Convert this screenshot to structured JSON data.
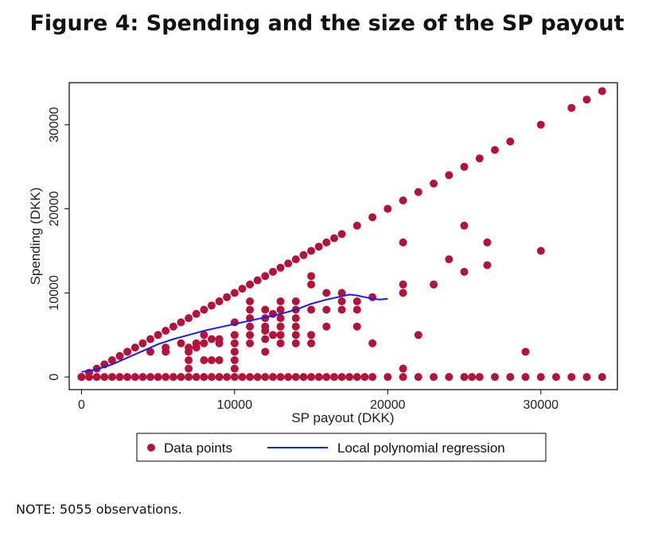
{
  "title": "Figure 4: Spending and the size of the SP payout",
  "note": "NOTE: 5055 observations.",
  "colors": {
    "points": "#b5123a",
    "line": "#1a1aff"
  },
  "chart_data": {
    "type": "scatter",
    "title": "Figure 4: Spending and the size of the SP payout",
    "xlabel": "SP payout (DKK)",
    "ylabel": "Spending (DKK)",
    "xlim": [
      -800,
      35000
    ],
    "ylim": [
      -1500,
      35000
    ],
    "xticks": [
      0,
      10000,
      20000,
      30000
    ],
    "xtick_labels": [
      "0",
      "10000",
      "20000",
      "30000"
    ],
    "yticks": [
      0,
      10000,
      20000,
      30000
    ],
    "ytick_labels": [
      "0",
      "10000",
      "20000",
      "30000"
    ],
    "grid": false,
    "legend_position": "bottom",
    "series": [
      {
        "name": "Data points",
        "kind": "scatter",
        "points": [
          [
            0,
            0
          ],
          [
            500,
            500
          ],
          [
            1000,
            1000
          ],
          [
            1500,
            1500
          ],
          [
            2000,
            2000
          ],
          [
            2500,
            2500
          ],
          [
            3000,
            3000
          ],
          [
            3500,
            3500
          ],
          [
            4000,
            4000
          ],
          [
            4500,
            4500
          ],
          [
            5000,
            5000
          ],
          [
            5500,
            5500
          ],
          [
            6000,
            6000
          ],
          [
            6500,
            6500
          ],
          [
            7000,
            7000
          ],
          [
            7500,
            7500
          ],
          [
            8000,
            8000
          ],
          [
            8500,
            8500
          ],
          [
            9000,
            9000
          ],
          [
            9500,
            9500
          ],
          [
            10000,
            10000
          ],
          [
            10500,
            10500
          ],
          [
            11000,
            11000
          ],
          [
            11500,
            11500
          ],
          [
            12000,
            12000
          ],
          [
            12500,
            12500
          ],
          [
            13000,
            13000
          ],
          [
            13500,
            13500
          ],
          [
            14000,
            14000
          ],
          [
            14500,
            14500
          ],
          [
            15000,
            15000
          ],
          [
            15500,
            15500
          ],
          [
            16000,
            16000
          ],
          [
            16500,
            16500
          ],
          [
            17000,
            17000
          ],
          [
            18000,
            18000
          ],
          [
            19000,
            19000
          ],
          [
            20000,
            20000
          ],
          [
            21000,
            21000
          ],
          [
            22000,
            22000
          ],
          [
            23000,
            23000
          ],
          [
            24000,
            24000
          ],
          [
            25000,
            25000
          ],
          [
            26000,
            26000
          ],
          [
            27000,
            27000
          ],
          [
            28000,
            28000
          ],
          [
            30000,
            30000
          ],
          [
            32000,
            32000
          ],
          [
            33000,
            33000
          ],
          [
            34000,
            34000
          ],
          [
            0,
            0
          ],
          [
            500,
            0
          ],
          [
            1000,
            0
          ],
          [
            1500,
            0
          ],
          [
            2000,
            0
          ],
          [
            2500,
            0
          ],
          [
            3000,
            0
          ],
          [
            3500,
            0
          ],
          [
            4000,
            0
          ],
          [
            4500,
            0
          ],
          [
            5000,
            0
          ],
          [
            5500,
            0
          ],
          [
            6000,
            0
          ],
          [
            6500,
            0
          ],
          [
            7000,
            0
          ],
          [
            7500,
            0
          ],
          [
            8000,
            0
          ],
          [
            8500,
            0
          ],
          [
            9000,
            0
          ],
          [
            9500,
            0
          ],
          [
            10000,
            0
          ],
          [
            10500,
            0
          ],
          [
            11000,
            0
          ],
          [
            11500,
            0
          ],
          [
            12000,
            0
          ],
          [
            12500,
            0
          ],
          [
            13000,
            0
          ],
          [
            13500,
            0
          ],
          [
            14000,
            0
          ],
          [
            14500,
            0
          ],
          [
            15000,
            0
          ],
          [
            15500,
            0
          ],
          [
            16000,
            0
          ],
          [
            16500,
            0
          ],
          [
            17000,
            0
          ],
          [
            17500,
            0
          ],
          [
            18000,
            0
          ],
          [
            18500,
            0
          ],
          [
            19000,
            0
          ],
          [
            20000,
            0
          ],
          [
            21000,
            0
          ],
          [
            22000,
            0
          ],
          [
            23000,
            0
          ],
          [
            24000,
            0
          ],
          [
            25000,
            0
          ],
          [
            25500,
            0
          ],
          [
            26000,
            0
          ],
          [
            27000,
            0
          ],
          [
            28000,
            0
          ],
          [
            29000,
            0
          ],
          [
            30000,
            0
          ],
          [
            31000,
            0
          ],
          [
            32000,
            0
          ],
          [
            33000,
            0
          ],
          [
            34000,
            0
          ],
          [
            3000,
            3000
          ],
          [
            4500,
            3000
          ],
          [
            5500,
            3500
          ],
          [
            5500,
            3000
          ],
          [
            7000,
            3500
          ],
          [
            7000,
            3000
          ],
          [
            7000,
            2000
          ],
          [
            7000,
            1000
          ],
          [
            7500,
            3500
          ],
          [
            8000,
            4000
          ],
          [
            8000,
            2000
          ],
          [
            8500,
            2000
          ],
          [
            8500,
            4500
          ],
          [
            9000,
            4500
          ],
          [
            9000,
            2000
          ],
          [
            10000,
            1000
          ],
          [
            10000,
            2000
          ],
          [
            10000,
            3000
          ],
          [
            10000,
            4000
          ],
          [
            10000,
            5000
          ],
          [
            10000,
            6500
          ],
          [
            11000,
            4000
          ],
          [
            11000,
            5000
          ],
          [
            11000,
            6000
          ],
          [
            11000,
            7000
          ],
          [
            11000,
            8000
          ],
          [
            11000,
            9000
          ],
          [
            12000,
            3000
          ],
          [
            12000,
            4500
          ],
          [
            12000,
            5500
          ],
          [
            12000,
            6000
          ],
          [
            12000,
            7000
          ],
          [
            12000,
            8000
          ],
          [
            12500,
            5000
          ],
          [
            12500,
            7500
          ],
          [
            13000,
            4000
          ],
          [
            13000,
            5000
          ],
          [
            13000,
            6000
          ],
          [
            13000,
            7000
          ],
          [
            13000,
            8000
          ],
          [
            13000,
            9000
          ],
          [
            14000,
            4000
          ],
          [
            14000,
            5000
          ],
          [
            14000,
            6000
          ],
          [
            14000,
            7000
          ],
          [
            14000,
            8000
          ],
          [
            14000,
            9000
          ],
          [
            15000,
            4000
          ],
          [
            15000,
            5000
          ],
          [
            15000,
            8000
          ],
          [
            15000,
            11000
          ],
          [
            15000,
            12000
          ],
          [
            16000,
            6000
          ],
          [
            16000,
            8000
          ],
          [
            16000,
            10000
          ],
          [
            17000,
            8000
          ],
          [
            17000,
            9000
          ],
          [
            17000,
            10000
          ],
          [
            18000,
            6000
          ],
          [
            18000,
            8000
          ],
          [
            18000,
            9000
          ],
          [
            19000,
            4000
          ],
          [
            19000,
            9500
          ],
          [
            21000,
            1000
          ],
          [
            21000,
            10000
          ],
          [
            21000,
            11000
          ],
          [
            21000,
            16000
          ],
          [
            22000,
            5000
          ],
          [
            23000,
            11000
          ],
          [
            24000,
            14000
          ],
          [
            25000,
            12500
          ],
          [
            25000,
            18000
          ],
          [
            26500,
            13300
          ],
          [
            26500,
            16000
          ],
          [
            29000,
            3000
          ],
          [
            30000,
            15000
          ],
          [
            8000,
            5000
          ],
          [
            9000,
            4000
          ],
          [
            6500,
            4000
          ],
          [
            7500,
            4000
          ]
        ]
      },
      {
        "name": "Local polynomial regression",
        "kind": "line",
        "points": [
          [
            0,
            600
          ],
          [
            1000,
            900
          ],
          [
            2000,
            1500
          ],
          [
            3000,
            2300
          ],
          [
            4000,
            3100
          ],
          [
            5000,
            3900
          ],
          [
            6000,
            4500
          ],
          [
            7000,
            5000
          ],
          [
            8000,
            5500
          ],
          [
            9000,
            5900
          ],
          [
            10000,
            6300
          ],
          [
            11000,
            6700
          ],
          [
            12000,
            7100
          ],
          [
            13000,
            7500
          ],
          [
            14000,
            8000
          ],
          [
            15000,
            8700
          ],
          [
            16000,
            9200
          ],
          [
            17000,
            9600
          ],
          [
            17500,
            9800
          ],
          [
            18000,
            9700
          ],
          [
            18500,
            9500
          ],
          [
            19000,
            9300
          ],
          [
            19500,
            9200
          ],
          [
            20000,
            9300
          ]
        ]
      }
    ]
  }
}
